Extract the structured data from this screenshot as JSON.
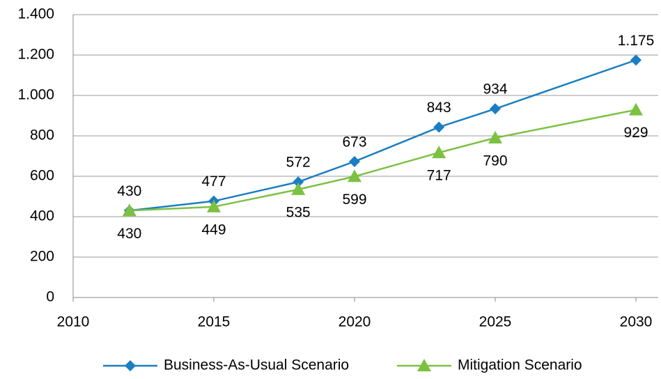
{
  "chart_data": {
    "type": "line",
    "x": [
      2012,
      2015,
      2018,
      2020,
      2023,
      2025,
      2030
    ],
    "xlim": [
      2010,
      2030
    ],
    "xticks": [
      2010,
      2015,
      2020,
      2025,
      2030
    ],
    "ylim": [
      0,
      1400
    ],
    "yticks": [
      0,
      200,
      400,
      600,
      800,
      {
        "value": 1000,
        "label": "1.000"
      },
      {
        "value": 1200,
        "label": "1.200"
      },
      {
        "value": 1400,
        "label": "1.400"
      }
    ],
    "grid": true,
    "legend": "bottom",
    "series": [
      {
        "name": "Business-As-Usual Scenario",
        "color": "#1b7ec2",
        "marker": "diamond",
        "label_position": "above",
        "values": [
          430,
          477,
          572,
          673,
          843,
          934,
          1175
        ],
        "value_labels": [
          "430",
          "477",
          "572",
          "673",
          "843",
          "934",
          "1.175"
        ]
      },
      {
        "name": "Mitigation Scenario",
        "color": "#7cc142",
        "marker": "triangle",
        "label_position": "below",
        "values": [
          430,
          449,
          535,
          599,
          717,
          790,
          929
        ]
      }
    ]
  }
}
